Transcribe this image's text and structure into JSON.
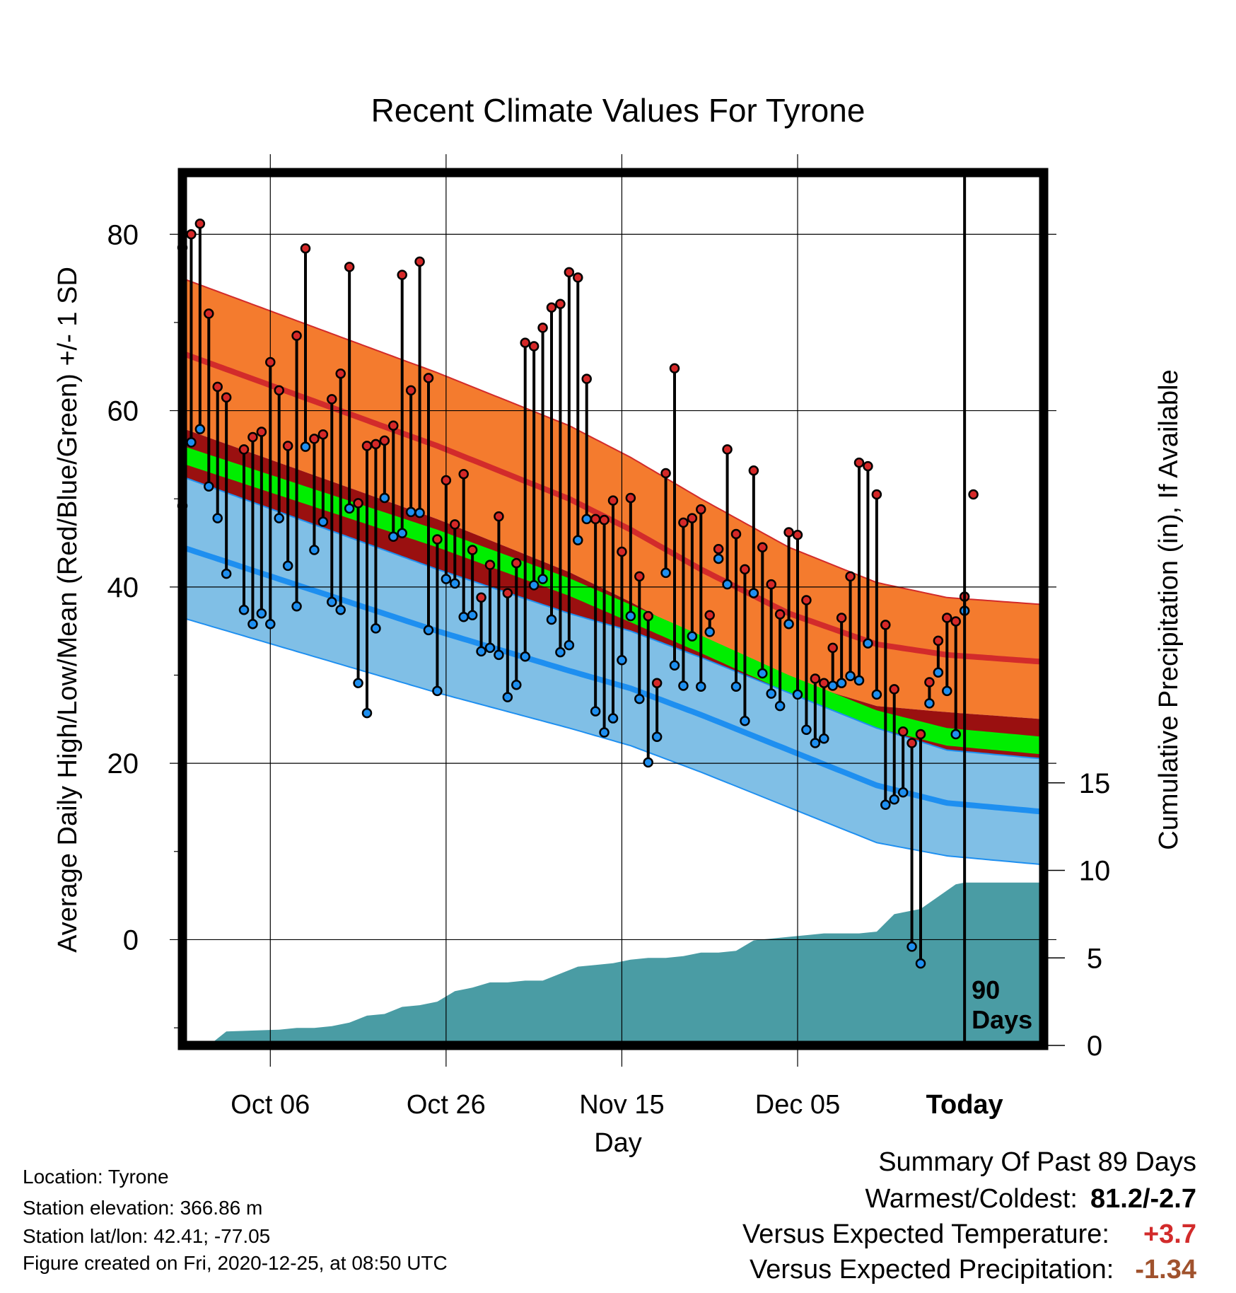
{
  "chart_data": {
    "type": "line",
    "title": "Recent Climate Values For Tyrone",
    "xlabel": "Day",
    "ylabel": "Average Daily High/Low/Mean (Red/Blue/Green) +/- 1 SD",
    "y2label": "Cumulative Precipitation (in), If Available",
    "ylim": [
      -12,
      87
    ],
    "y2lim": [
      0,
      30
    ],
    "xlim": [
      -89,
      9
    ],
    "x_ticks": [
      {
        "x": -79,
        "label": "Oct 06"
      },
      {
        "x": -59,
        "label": "Oct 26"
      },
      {
        "x": -39,
        "label": "Nov 15"
      },
      {
        "x": -19,
        "label": "Dec 05"
      },
      {
        "x": 0,
        "label": "Today"
      }
    ],
    "y_ticks": [
      0,
      20,
      40,
      60,
      80
    ],
    "y2_ticks": [
      0,
      5,
      10,
      15
    ],
    "today_label": "90\nDays",
    "colors": {
      "high_band": "#f47b2e",
      "high_mean": "#d22b2b",
      "low_band": "#80bfe6",
      "low_mean": "#1e8ff0",
      "mean_band": "#00ee00",
      "overlap_band": "#9a1010",
      "precip": "#4a9ca4",
      "high_dot": "#d52828",
      "low_dot": "#1e8ff0"
    },
    "normals": {
      "x": [
        -89,
        -60,
        -45,
        -38,
        -30,
        -20,
        -10,
        -2,
        9
      ],
      "high_mean": [
        66.5,
        56,
        50,
        46.5,
        42,
        37,
        33.5,
        32.3,
        31.5
      ],
      "high_sd": [
        8.5,
        8.3,
        8.3,
        8.2,
        8.0,
        7.5,
        7.0,
        6.5,
        6.5
      ],
      "low_mean": [
        44.5,
        35,
        30.5,
        28.5,
        25.5,
        21.5,
        17.5,
        15.5,
        14.5
      ],
      "low_sd": [
        8,
        7,
        6.5,
        6.5,
        6.5,
        6.5,
        6.5,
        6,
        6
      ],
      "mean_mean": [
        55,
        45.5,
        40,
        37,
        33.5,
        29,
        25,
        23,
        22
      ]
    },
    "series": [
      {
        "name": "High",
        "values": [
          78.5,
          80,
          81.2,
          71,
          62.7,
          61.5,
          null,
          55.6,
          57,
          57.6,
          65.5,
          62.3,
          56,
          68.5,
          78.4,
          56.8,
          57.3,
          61.3,
          64.2,
          76.3,
          49.5,
          56,
          56.2,
          56.6,
          58.3,
          75.4,
          62.3,
          76.9,
          63.7,
          45.4,
          52.1,
          47.1,
          52.8,
          44.2,
          38.8,
          42.5,
          48,
          39.3,
          42.7,
          67.7,
          67.3,
          69.4,
          71.7,
          72.1,
          75.7,
          75.1,
          63.6,
          47.7,
          47.6,
          49.8,
          44,
          50.1,
          41.2,
          36.7,
          29.1,
          52.9,
          64.8,
          47.3,
          47.8,
          48.8,
          36.8,
          44.3,
          55.6,
          46,
          42,
          53.2,
          44.5,
          40.3,
          36.9,
          46.2,
          45.9,
          38.5,
          29.6,
          29.1,
          33.1,
          36.5,
          41.2,
          54.1,
          53.7,
          50.5,
          35.7,
          28.4,
          23.6,
          22.3,
          23.3,
          29.2,
          33.9,
          36.5,
          36.1,
          38.9,
          50.5
        ]
      },
      {
        "name": "Low",
        "values": [
          49.2,
          56.4,
          57.9,
          51.4,
          47.8,
          41.5,
          null,
          37.4,
          35.8,
          37,
          35.8,
          47.8,
          42.4,
          37.8,
          55.9,
          44.2,
          47.4,
          38.3,
          37.4,
          48.9,
          29.1,
          25.7,
          35.3,
          50.1,
          45.7,
          46.1,
          48.5,
          48.4,
          35.1,
          28.2,
          40.9,
          40.4,
          36.6,
          36.8,
          32.7,
          33.1,
          32.3,
          27.5,
          28.9,
          32.1,
          40.2,
          40.9,
          36.3,
          32.6,
          33.4,
          45.3,
          47.7,
          25.9,
          23.5,
          25.1,
          31.7,
          36.7,
          27.3,
          20.1,
          23,
          41.6,
          31.1,
          28.8,
          34.4,
          28.7,
          34.9,
          43.2,
          40.3,
          28.7,
          24.8,
          39.3,
          30.2,
          27.9,
          26.5,
          35.8,
          27.8,
          23.8,
          22.3,
          22.8,
          28.8,
          29.1,
          29.9,
          29.4,
          33.6,
          27.8,
          15.3,
          15.9,
          16.7,
          -0.8,
          -2.7,
          26.8,
          30.3,
          28.2,
          23.3,
          37.3
        ]
      },
      {
        "name": "Cumulative Precipitation",
        "x": [
          -89,
          -86,
          -84,
          -78,
          -76,
          -74,
          -72,
          -70,
          -68,
          -66,
          -64,
          -62,
          -60,
          -58,
          -56,
          -54,
          -52,
          -50,
          -48,
          -44,
          -42,
          -40,
          -38,
          -36,
          -34,
          -32,
          -30,
          -28,
          -26,
          -24,
          -22,
          -20,
          -18,
          -16,
          -12,
          -10,
          -8,
          -7,
          -5,
          -1,
          0,
          9
        ],
        "values": [
          0,
          0,
          0.8,
          0.9,
          1.0,
          1.0,
          1.1,
          1.3,
          1.7,
          1.8,
          2.2,
          2.3,
          2.5,
          3.1,
          3.3,
          3.6,
          3.6,
          3.7,
          3.7,
          4.5,
          4.6,
          4.7,
          4.9,
          5.0,
          5.0,
          5.1,
          5.3,
          5.3,
          5.4,
          6.0,
          6.1,
          6.2,
          6.3,
          6.4,
          6.4,
          6.5,
          7.5,
          7.6,
          7.8,
          9.2,
          9.3,
          9.3
        ]
      }
    ]
  },
  "info": {
    "location": "Location: Tyrone",
    "elevation": "Station elevation: 366.86 m",
    "latlon": "Station lat/lon: 42.41; -77.05",
    "created": "Figure created on Fri, 2020-12-25, at 08:50 UTC"
  },
  "summary": {
    "header": "Summary Of Past 89 Days",
    "warmest_label": "Warmest/Coldest:",
    "warmest_value": "81.2/-2.7",
    "temp_label": "Versus Expected Temperature:",
    "temp_value": "+3.7",
    "precip_label": "Versus Expected Precipitation:",
    "precip_value": "-1.34",
    "temp_color": "#d22b2b",
    "precip_color": "#a0522d"
  }
}
